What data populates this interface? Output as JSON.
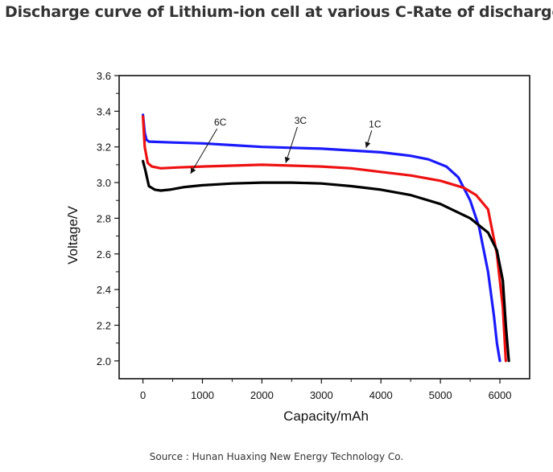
{
  "title": "Discharge curve of Lithium-ion cell at various C-Rate of discharge",
  "source": "Source : Hunan Huaxing New Energy Technology Co.",
  "chart_data": {
    "type": "line",
    "title": "Discharge curve of Lithium-ion cell at various C-Rate of discharge",
    "xlabel": "Capacity/mAh",
    "ylabel": "Voltage/V",
    "xlim": [
      -400,
      6500
    ],
    "ylim": [
      1.9,
      3.6
    ],
    "xticks": [
      0,
      1000,
      2000,
      3000,
      4000,
      5000,
      6000
    ],
    "yticks": [
      2.0,
      2.2,
      2.4,
      2.6,
      2.8,
      3.0,
      3.2,
      3.4,
      3.6
    ],
    "grid": false,
    "legend": "none",
    "series": [
      {
        "name": "1C",
        "color": "#1a1aff",
        "x": [
          0,
          30,
          60,
          100,
          500,
          1000,
          1500,
          2000,
          2500,
          3000,
          3500,
          4000,
          4500,
          4800,
          5100,
          5300,
          5500,
          5650,
          5800,
          5900,
          5950,
          6000
        ],
        "y": [
          3.38,
          3.28,
          3.24,
          3.23,
          3.225,
          3.22,
          3.21,
          3.2,
          3.195,
          3.19,
          3.18,
          3.17,
          3.15,
          3.13,
          3.09,
          3.03,
          2.9,
          2.75,
          2.5,
          2.25,
          2.1,
          2.0
        ]
      },
      {
        "name": "3C",
        "color": "#ee1111",
        "x": [
          0,
          30,
          80,
          150,
          300,
          600,
          1000,
          1500,
          2000,
          2500,
          3000,
          3500,
          4000,
          4500,
          5000,
          5400,
          5600,
          5800,
          5950,
          6050,
          6100
        ],
        "y": [
          3.37,
          3.2,
          3.11,
          3.09,
          3.08,
          3.085,
          3.09,
          3.095,
          3.1,
          3.095,
          3.09,
          3.08,
          3.06,
          3.04,
          3.01,
          2.97,
          2.93,
          2.85,
          2.6,
          2.3,
          2.0
        ]
      },
      {
        "name": "6C",
        "color": "#000000",
        "x": [
          0,
          40,
          100,
          200,
          300,
          450,
          700,
          1000,
          1500,
          2000,
          2500,
          3000,
          3500,
          4000,
          4500,
          5000,
          5500,
          5800,
          5950,
          6050,
          6100,
          6150
        ],
        "y": [
          3.12,
          3.07,
          2.98,
          2.96,
          2.955,
          2.96,
          2.975,
          2.985,
          2.995,
          3.0,
          3.0,
          2.995,
          2.98,
          2.96,
          2.93,
          2.88,
          2.8,
          2.72,
          2.62,
          2.45,
          2.2,
          2.0
        ]
      }
    ],
    "annotations": [
      {
        "text": "6C",
        "x": 1300,
        "y": 3.32,
        "arrow_to": [
          800,
          3.05
        ]
      },
      {
        "text": "3C",
        "x": 2650,
        "y": 3.33,
        "arrow_to": [
          2400,
          3.11
        ]
      },
      {
        "text": "1C",
        "x": 3900,
        "y": 3.31,
        "arrow_to": [
          3750,
          3.195
        ]
      }
    ]
  }
}
